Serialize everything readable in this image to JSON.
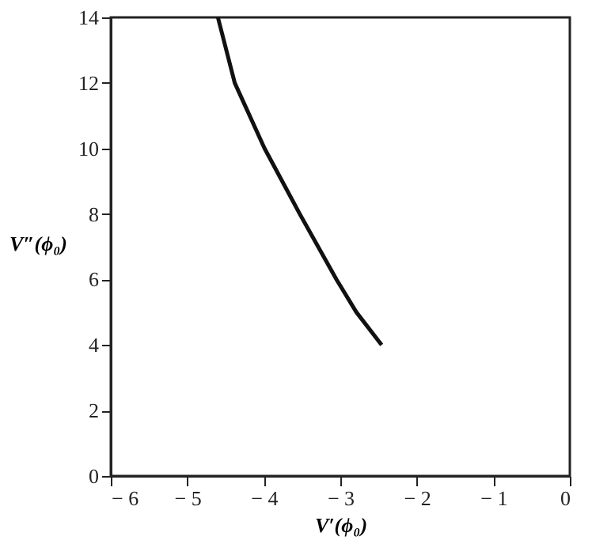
{
  "chart_data": {
    "type": "line",
    "xlabel": "V′(ϕ₀)",
    "ylabel": "V″(ϕ₀)",
    "x": [
      -4.6,
      -4.38,
      -3.99,
      -3.53,
      -3.05,
      -2.79,
      -2.46
    ],
    "series": [
      {
        "color": "#111111",
        "values": [
          14,
          12,
          10,
          8,
          6,
          5,
          4
        ]
      }
    ],
    "xlim": [
      -6,
      0
    ],
    "xticks": [
      -6,
      -5,
      -4,
      -3,
      -2,
      -1,
      0
    ],
    "ylim": [
      0,
      14
    ],
    "yticks": [
      0,
      2,
      4,
      6,
      8,
      10,
      12,
      14
    ],
    "grid": false,
    "legend": false,
    "marker": "none",
    "line_style": "solid"
  }
}
